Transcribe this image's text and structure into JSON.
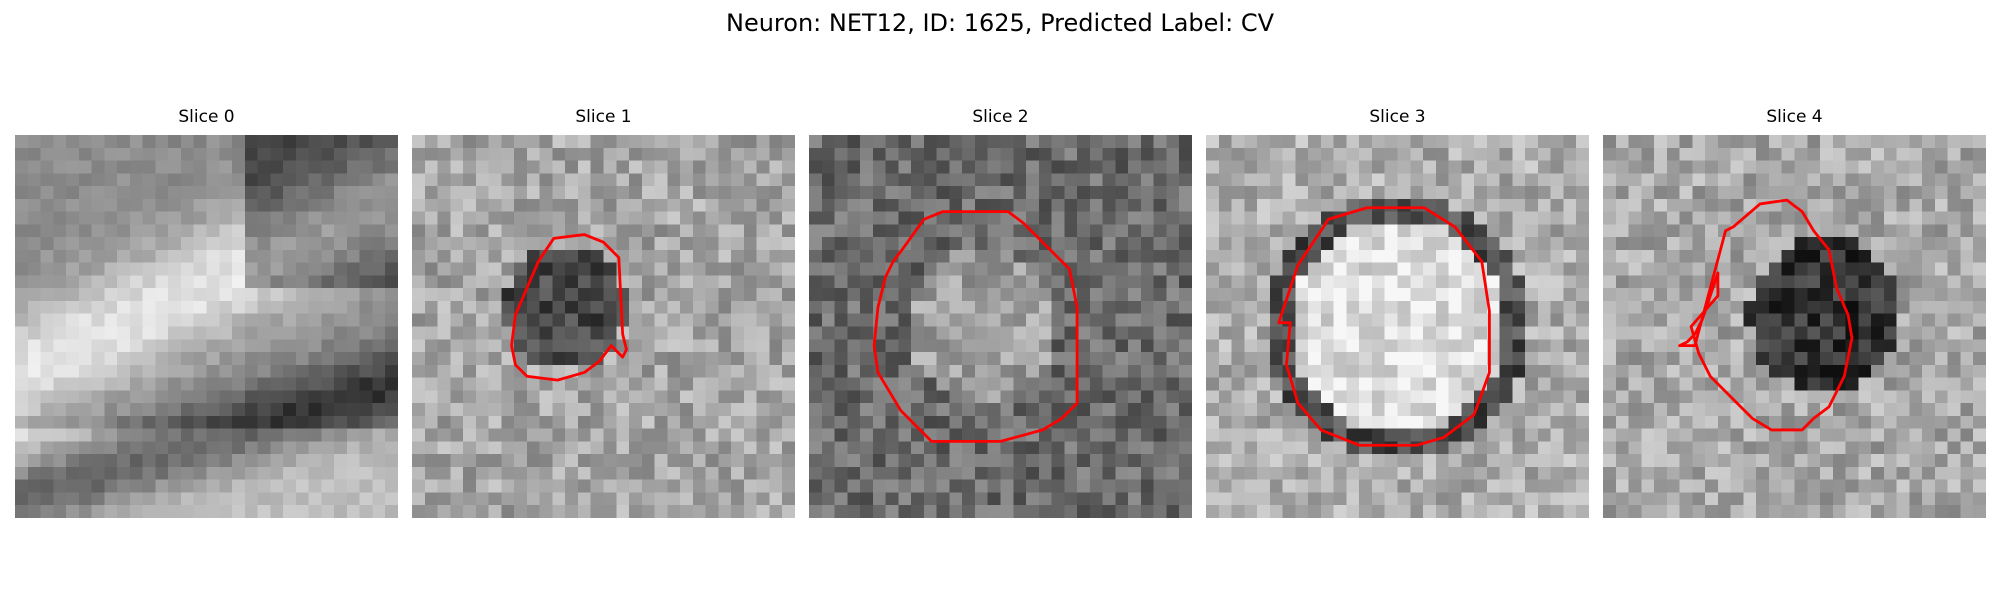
{
  "figure": {
    "title": "Neuron: NET12, ID: 1625, Predicted Label: CV"
  },
  "colors": {
    "contour": "#ff0000",
    "background": "#ffffff"
  },
  "slices": [
    {
      "title": "Slice 0",
      "colormap": "gray",
      "has_contour": false,
      "center": "bright diagonal band with dark band below",
      "contour": []
    },
    {
      "title": "Slice 1",
      "colormap": "gray",
      "has_contour": true,
      "contour": [
        [
          0.37,
          0.27
        ],
        [
          0.45,
          0.26
        ],
        [
          0.5,
          0.28
        ],
        [
          0.54,
          0.32
        ],
        [
          0.55,
          0.52
        ],
        [
          0.56,
          0.56
        ],
        [
          0.55,
          0.58
        ],
        [
          0.52,
          0.55
        ],
        [
          0.49,
          0.59
        ],
        [
          0.45,
          0.62
        ],
        [
          0.38,
          0.64
        ],
        [
          0.3,
          0.63
        ],
        [
          0.27,
          0.6
        ],
        [
          0.26,
          0.55
        ],
        [
          0.27,
          0.47
        ],
        [
          0.3,
          0.4
        ],
        [
          0.33,
          0.33
        ]
      ]
    },
    {
      "title": "Slice 2",
      "colormap": "gray",
      "has_contour": true,
      "contour": [
        [
          0.3,
          0.22
        ],
        [
          0.35,
          0.2
        ],
        [
          0.52,
          0.2
        ],
        [
          0.56,
          0.23
        ],
        [
          0.68,
          0.35
        ],
        [
          0.7,
          0.45
        ],
        [
          0.7,
          0.7
        ],
        [
          0.66,
          0.74
        ],
        [
          0.61,
          0.77
        ],
        [
          0.5,
          0.8
        ],
        [
          0.32,
          0.8
        ],
        [
          0.24,
          0.72
        ],
        [
          0.18,
          0.62
        ],
        [
          0.17,
          0.55
        ],
        [
          0.18,
          0.45
        ],
        [
          0.2,
          0.37
        ],
        [
          0.22,
          0.33
        ],
        [
          0.25,
          0.29
        ]
      ]
    },
    {
      "title": "Slice 3",
      "colormap": "gray",
      "has_contour": true,
      "contour": [
        [
          0.32,
          0.22
        ],
        [
          0.42,
          0.19
        ],
        [
          0.57,
          0.19
        ],
        [
          0.65,
          0.24
        ],
        [
          0.72,
          0.33
        ],
        [
          0.74,
          0.46
        ],
        [
          0.74,
          0.62
        ],
        [
          0.7,
          0.73
        ],
        [
          0.62,
          0.79
        ],
        [
          0.55,
          0.81
        ],
        [
          0.4,
          0.81
        ],
        [
          0.3,
          0.77
        ],
        [
          0.24,
          0.7
        ],
        [
          0.21,
          0.6
        ],
        [
          0.22,
          0.49
        ],
        [
          0.19,
          0.49
        ],
        [
          0.21,
          0.43
        ],
        [
          0.24,
          0.34
        ]
      ]
    },
    {
      "title": "Slice 4",
      "colormap": "gray",
      "has_contour": true,
      "contour": [
        [
          0.32,
          0.25
        ],
        [
          0.34,
          0.24
        ],
        [
          0.41,
          0.18
        ],
        [
          0.48,
          0.17
        ],
        [
          0.52,
          0.2
        ],
        [
          0.55,
          0.25
        ],
        [
          0.59,
          0.3
        ],
        [
          0.61,
          0.4
        ],
        [
          0.64,
          0.47
        ],
        [
          0.65,
          0.53
        ],
        [
          0.63,
          0.63
        ],
        [
          0.59,
          0.71
        ],
        [
          0.55,
          0.74
        ],
        [
          0.52,
          0.77
        ],
        [
          0.44,
          0.77
        ],
        [
          0.39,
          0.74
        ],
        [
          0.35,
          0.7
        ],
        [
          0.28,
          0.63
        ],
        [
          0.25,
          0.57
        ],
        [
          0.23,
          0.5
        ],
        [
          0.3,
          0.42
        ],
        [
          0.3,
          0.36
        ],
        [
          0.26,
          0.48
        ],
        [
          0.24,
          0.52
        ],
        [
          0.22,
          0.54
        ],
        [
          0.2,
          0.55
        ],
        [
          0.24,
          0.55
        ]
      ]
    }
  ]
}
